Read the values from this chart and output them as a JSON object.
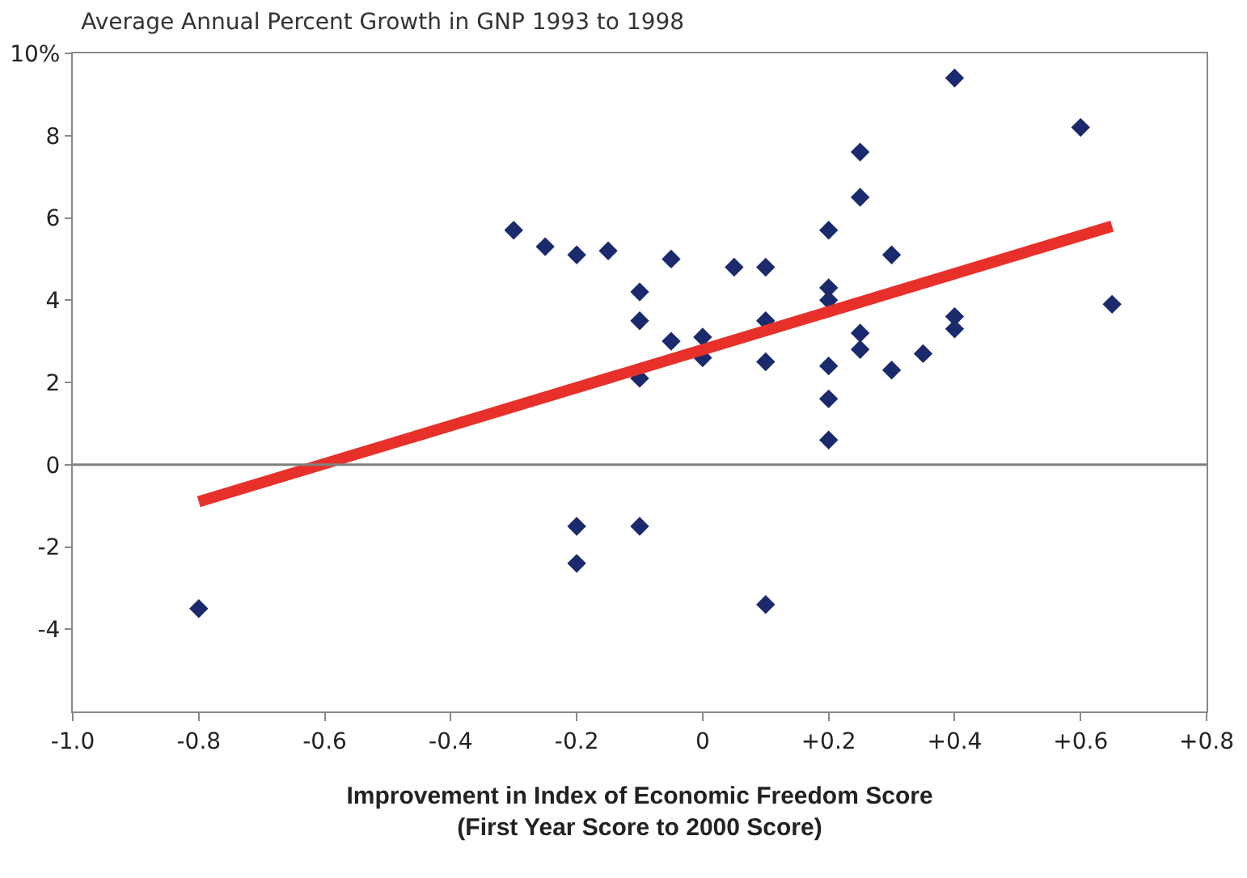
{
  "chart_data": {
    "type": "scatter",
    "title": "Average Annual Percent Growth in GNP 1993 to 1998",
    "xlabel": "Improvement in Index of Economic Freedom Score\n(First Year Score to 2000 Score)",
    "xlim": [
      -1.0,
      0.8
    ],
    "xticks": [
      {
        "value": -1.0,
        "label": "-1.0"
      },
      {
        "value": -0.8,
        "label": "-0.8"
      },
      {
        "value": -0.6,
        "label": "-0.6"
      },
      {
        "value": -0.4,
        "label": "-0.4"
      },
      {
        "value": -0.2,
        "label": "-0.2"
      },
      0,
      {
        "value": 0.2,
        "label": "+0.2"
      },
      {
        "value": 0.4,
        "label": "+0.4"
      },
      {
        "value": 0.6,
        "label": "+0.6"
      },
      {
        "value": 0.8,
        "label": "+0.8"
      }
    ],
    "ylim": [
      -6,
      10
    ],
    "yticks": [
      -4,
      -2,
      0,
      2,
      4,
      6,
      8,
      {
        "value": 10,
        "label": "10%"
      }
    ],
    "grid": false,
    "marker": "diamond",
    "ref_lines": [
      {
        "axis": "y",
        "value": 0,
        "color": "#808080"
      }
    ],
    "series": [
      {
        "type": "scatter",
        "color": "#1a2a6c",
        "x": [
          -0.8,
          -0.3,
          -0.25,
          -0.2,
          -0.15,
          -0.2,
          -0.2,
          -0.1,
          0.1,
          -0.1,
          -0.1,
          -0.1,
          -0.05,
          -0.05,
          0,
          0,
          0.05,
          0.1,
          0.1,
          0.1,
          0.2,
          0.2,
          0.2,
          0.2,
          0.2,
          0.2,
          0.25,
          0.25,
          0.25,
          0.25,
          0.3,
          0.3,
          0.35,
          0.4,
          0.4,
          0.4,
          0.6,
          0.65
        ],
        "values": [
          -3.5,
          5.7,
          5.3,
          5.1,
          5.2,
          -1.5,
          -2.4,
          -1.5,
          -3.4,
          4.2,
          3.5,
          2.1,
          5.0,
          3.0,
          3.1,
          2.6,
          4.8,
          4.8,
          3.5,
          2.5,
          5.7,
          4.3,
          4.0,
          2.4,
          1.6,
          0.6,
          7.6,
          6.5,
          3.2,
          2.8,
          5.1,
          2.3,
          2.7,
          9.4,
          3.6,
          3.3,
          8.2,
          3.9
        ]
      },
      {
        "type": "line",
        "color": "#e8302a",
        "x": [
          -0.8,
          0.65
        ],
        "values": [
          -0.9,
          5.8
        ],
        "marker": "none",
        "line_style": "solid"
      }
    ]
  }
}
